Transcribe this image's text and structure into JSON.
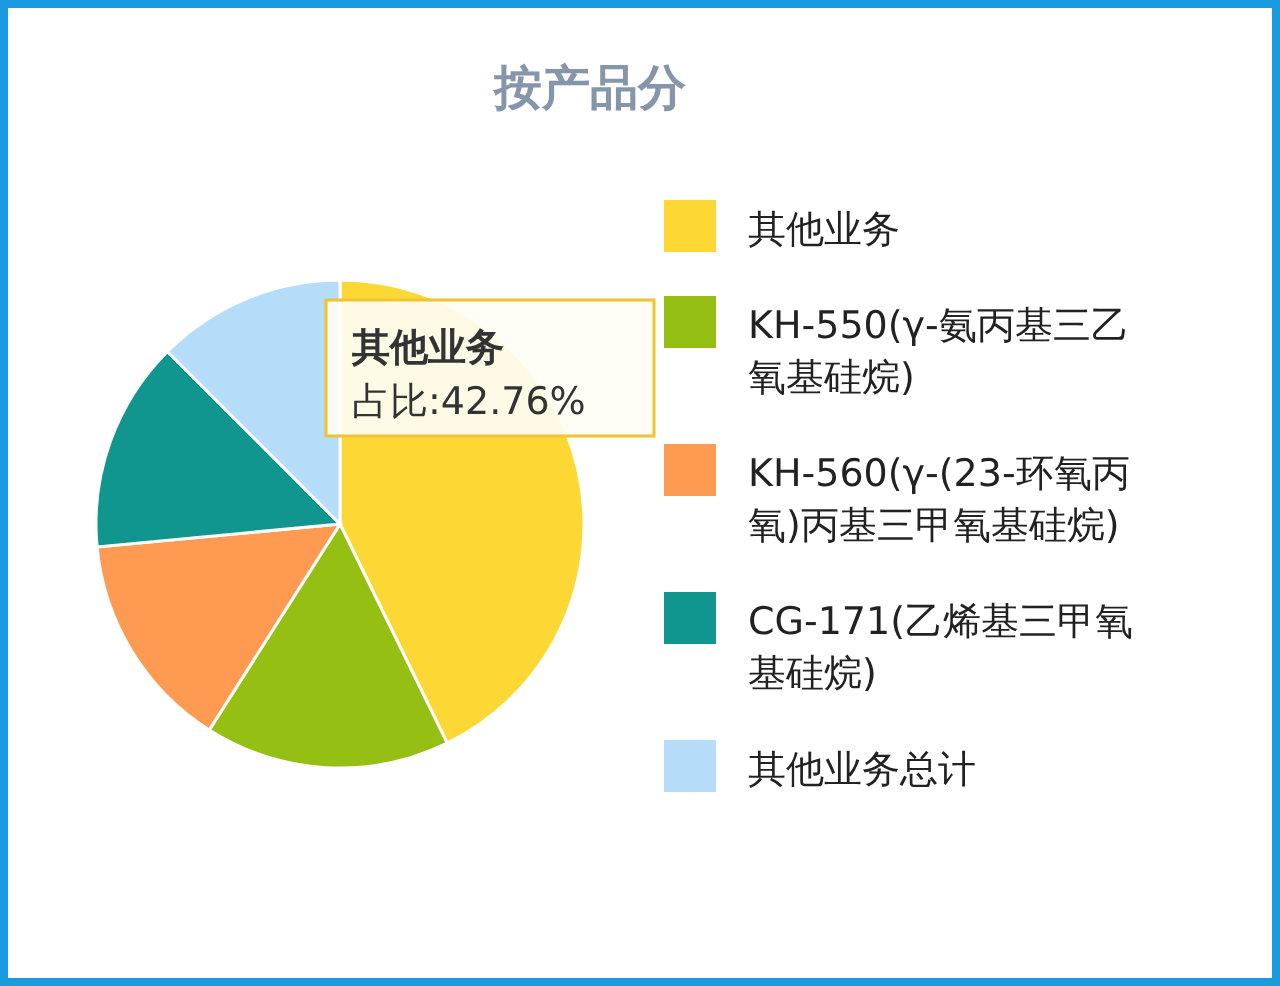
{
  "chart_data": {
    "type": "pie",
    "title": "按产品分",
    "categories": [
      "其他业务",
      "KH-550(γ-氨丙基三乙氧基硅烷)",
      "KH-560(γ-(23-环氧丙氧)丙基三甲氧基硅烷)",
      "CG-171(乙烯基三甲氧基硅烷)",
      "其他业务总计"
    ],
    "values": [
      42.76,
      16.24,
      14.5,
      14.0,
      12.5
    ],
    "colors": [
      "#fdd835",
      "#95bf12",
      "#ff9a52",
      "#10968f",
      "#b5dcf9"
    ],
    "legend": "right",
    "annotations": [
      "其他业务",
      "占比:42.76%"
    ]
  }
}
